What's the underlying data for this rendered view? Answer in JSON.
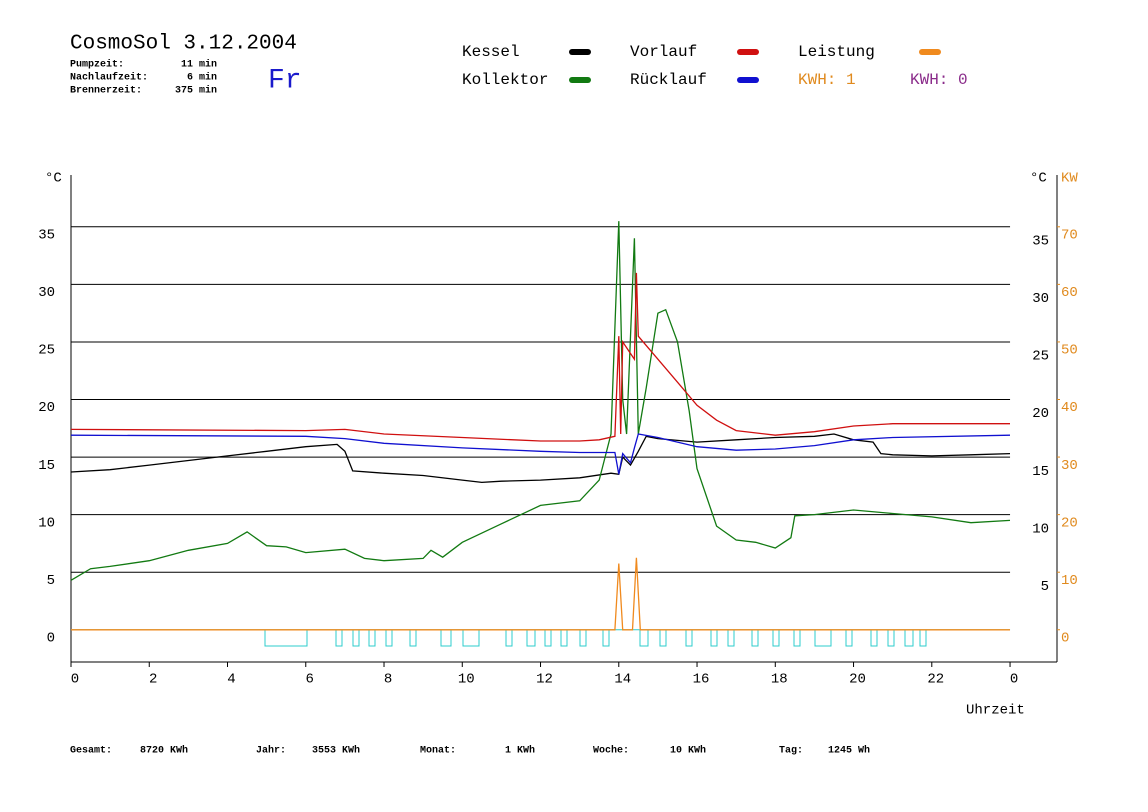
{
  "chart_data": {
    "type": "line",
    "title": "CosmoSol 3.12.2004",
    "info": [
      [
        "Pumpzeit:",
        "11 min"
      ],
      [
        "Nachlaufzeit:",
        "6 min"
      ],
      [
        "Brennerzeit:",
        "375 min"
      ]
    ],
    "day": "Fr",
    "y_label": "°C",
    "y2_label_c": "°C",
    "y2_label": "KW",
    "x_label": "Uhrzeit",
    "kwh_labels": [
      {
        "text": "KWH: 1",
        "color": "#e08a1e"
      },
      {
        "text": "KWH: 0",
        "color": "#8a2b8a"
      }
    ],
    "xlim": [
      0,
      25.2
    ],
    "xticks": [
      0,
      2,
      4,
      6,
      8,
      10,
      12,
      14,
      16,
      18,
      20,
      22,
      {
        "value": 24,
        "label": "0"
      }
    ],
    "ylim": [
      -2.8,
      39.5
    ],
    "yticks": [
      0,
      5,
      10,
      15,
      20,
      25,
      30,
      35
    ],
    "y_right_ticks": [
      5,
      10,
      15,
      20,
      25,
      30,
      35
    ],
    "y2lim": [
      -5.6,
      79
    ],
    "y2ticks": [
      0,
      10,
      20,
      30,
      40,
      50,
      60,
      70
    ],
    "grid": true,
    "series": [
      {
        "name": "Kessel",
        "color": "#000000",
        "x": [
          0,
          1,
          2,
          3,
          4,
          5,
          6,
          6.8,
          7,
          7.2,
          8,
          9,
          10,
          10.5,
          11,
          12,
          13,
          13.8,
          14,
          14.1,
          14.3,
          14.5,
          14.7,
          15,
          16,
          17,
          18,
          19,
          19.5,
          20,
          20.5,
          20.7,
          21,
          22,
          23,
          24
        ],
        "values": [
          13.7,
          13.9,
          14.3,
          14.7,
          15.1,
          15.5,
          15.9,
          16.1,
          15.5,
          13.8,
          13.6,
          13.4,
          13.0,
          12.8,
          12.9,
          13.0,
          13.2,
          13.6,
          13.5,
          15,
          14.3,
          15.5,
          16.8,
          16.6,
          16.3,
          16.5,
          16.7,
          16.8,
          17,
          16.5,
          16.3,
          15.3,
          15.2,
          15.1,
          15.2,
          15.3
        ]
      },
      {
        "name": "Kollektor",
        "color": "#127a12",
        "x": [
          0,
          0.5,
          1,
          2,
          3,
          4,
          4.5,
          5,
          5.5,
          6,
          7,
          7.5,
          8,
          9,
          9.2,
          9.5,
          10,
          11,
          12,
          13,
          13.5,
          13.8,
          14,
          14.1,
          14.2,
          14.4,
          14.5,
          14.7,
          15,
          15.2,
          15.5,
          15.8,
          16,
          16.5,
          17,
          17.5,
          18,
          18.4,
          18.5,
          19,
          20,
          21,
          22,
          23,
          24
        ],
        "values": [
          4.3,
          5.3,
          5.5,
          6,
          6.9,
          7.5,
          8.5,
          7.3,
          7.2,
          6.7,
          7,
          6.2,
          6,
          6.2,
          6.9,
          6.3,
          7.6,
          9.2,
          10.8,
          11.2,
          13,
          17,
          35.5,
          20,
          17,
          34,
          17,
          21,
          27.5,
          27.8,
          25,
          19,
          14,
          9,
          7.8,
          7.6,
          7.1,
          8,
          9.9,
          10,
          10.4,
          10.1,
          9.8,
          9.3,
          9.5
        ]
      },
      {
        "name": "Vorlauf",
        "color": "#d01010",
        "x": [
          0,
          6,
          7,
          8,
          10,
          12,
          13,
          13.5,
          13.9,
          14,
          14.05,
          14.1,
          14.3,
          14.4,
          14.45,
          14.5,
          15,
          15.5,
          16,
          16.5,
          17,
          18,
          19,
          20,
          21,
          24
        ],
        "values": [
          17.4,
          17.3,
          17.4,
          17.0,
          16.7,
          16.4,
          16.4,
          16.5,
          16.8,
          25.5,
          17,
          25,
          24,
          23.5,
          31,
          25.5,
          23.5,
          21.5,
          19.5,
          18.2,
          17.3,
          16.9,
          17.2,
          17.7,
          17.9,
          17.9
        ]
      },
      {
        "name": "Rücklauf",
        "color": "#1010d0",
        "x": [
          0,
          6,
          7,
          8,
          10,
          12,
          13,
          13.9,
          14,
          14.1,
          14.3,
          14.4,
          14.5,
          15,
          16,
          17,
          18,
          19,
          20,
          21,
          24
        ],
        "values": [
          16.9,
          16.8,
          16.6,
          16.2,
          15.8,
          15.5,
          15.4,
          15.4,
          13.5,
          15.3,
          14.5,
          15.8,
          17,
          16.7,
          15.9,
          15.6,
          15.7,
          16.0,
          16.5,
          16.7,
          16.9
        ]
      },
      {
        "name": "Leistung",
        "color": "#f08a1e",
        "axis": "y2",
        "x": [
          0,
          13.9,
          14.0,
          14.1,
          14.35,
          14.45,
          14.55,
          24
        ],
        "values": [
          0,
          0,
          11.5,
          0,
          0,
          12.5,
          0,
          0
        ]
      }
    ],
    "footer": [
      [
        "Gesamt:",
        "8720 KWh"
      ],
      [
        "Jahr:",
        "3553 KWh"
      ],
      [
        "Monat:",
        "1 KWh"
      ],
      [
        "Woche:",
        "10 KWh"
      ],
      [
        "Tag:",
        "1245 Wh"
      ]
    ]
  }
}
